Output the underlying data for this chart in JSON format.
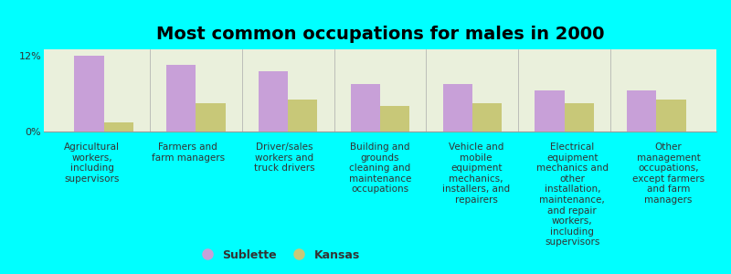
{
  "title": "Most common occupations for males in 2000",
  "categories": [
    "Agricultural\nworkers,\nincluding\nsupervisors",
    "Farmers and\nfarm managers",
    "Driver/sales\nworkers and\ntruck drivers",
    "Building and\ngrounds\ncleaning and\nmaintenance\noccupations",
    "Vehicle and\nmobile\nequipment\nmechanics,\ninstallers, and\nrepairers",
    "Electrical\nequipment\nmechanics and\nother\ninstallation,\nmaintenance,\nand repair\nworkers,\nincluding\nsupervisors",
    "Other\nmanagement\noccupations,\nexcept farmers\nand farm\nmanagers"
  ],
  "sublette_values": [
    12.0,
    10.5,
    9.5,
    7.5,
    7.5,
    6.5,
    6.5
  ],
  "kansas_values": [
    1.5,
    4.5,
    5.0,
    4.0,
    4.5,
    4.5,
    5.0
  ],
  "sublette_color": "#c8a0d8",
  "kansas_color": "#c8c878",
  "background_color": "#00ffff",
  "plot_bg_color": "#eaf0dc",
  "ylim_max": 13,
  "ytick_labels": [
    "0%",
    "12%"
  ],
  "ytick_vals": [
    0,
    12
  ],
  "bar_width": 0.32,
  "legend_labels": [
    "Sublette",
    "Kansas"
  ],
  "title_fontsize": 14,
  "label_fontsize": 7.5
}
